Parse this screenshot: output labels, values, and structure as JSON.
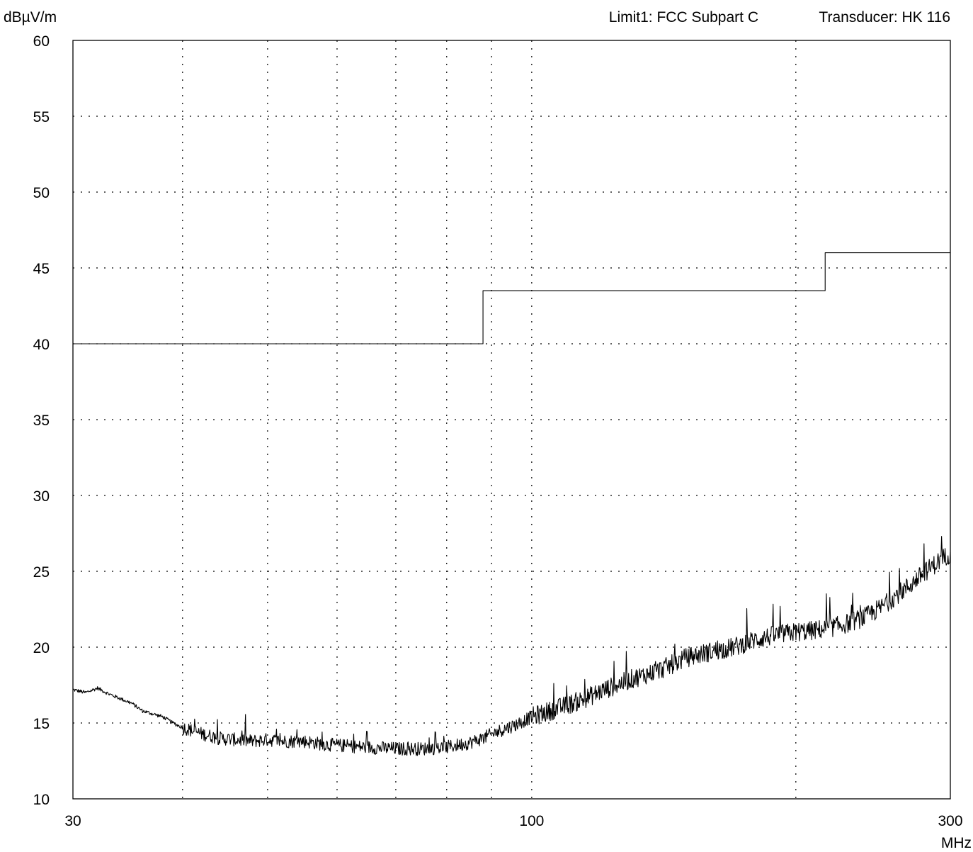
{
  "chart_data": {
    "type": "line",
    "y_unit": "dBµV/m",
    "x_unit": "MHz",
    "header": {
      "limit": "Limit1: FCC Subpart C",
      "transducer": "Transducer: HK 116"
    },
    "xscale": "log",
    "xlim": [
      30,
      300
    ],
    "ylim": [
      10,
      60
    ],
    "yticks": [
      60,
      55,
      50,
      45,
      40,
      35,
      30,
      25,
      20,
      15,
      10
    ],
    "xtick_labels": [
      "30",
      "100",
      "300"
    ],
    "grid": true,
    "series": [
      {
        "name": "Limit1: FCC Subpart C",
        "step": true,
        "x": [
          30,
          88,
          88,
          216,
          216,
          300
        ],
        "y": [
          40.0,
          40.0,
          43.5,
          43.5,
          46.0,
          46.0
        ]
      },
      {
        "type": "trace",
        "x": [
          30,
          31,
          32,
          33,
          34,
          35,
          36,
          37,
          38,
          39,
          40,
          42,
          44,
          46,
          48,
          50,
          52,
          55,
          58,
          61,
          65,
          70,
          75,
          80,
          85,
          88,
          92,
          96,
          100,
          105,
          110,
          115,
          120,
          125,
          130,
          135,
          140,
          145,
          150,
          160,
          170,
          180,
          190,
          200,
          210,
          220,
          230,
          240,
          250,
          260,
          270,
          280,
          290,
          300
        ],
        "y": [
          17.2,
          17.0,
          17.3,
          16.9,
          16.6,
          16.3,
          15.8,
          15.6,
          15.4,
          15.0,
          14.7,
          14.3,
          14.0,
          13.9,
          13.8,
          13.9,
          13.8,
          13.8,
          13.6,
          13.5,
          13.4,
          13.3,
          13.3,
          13.4,
          13.7,
          14.0,
          14.5,
          14.9,
          15.4,
          15.8,
          16.2,
          16.6,
          17.1,
          17.5,
          17.9,
          18.2,
          18.5,
          18.9,
          19.3,
          19.7,
          20.0,
          20.5,
          20.8,
          21.0,
          21.1,
          21.3,
          21.6,
          22.0,
          22.6,
          23.4,
          24.1,
          24.9,
          25.6,
          26.2
        ]
      }
    ]
  }
}
